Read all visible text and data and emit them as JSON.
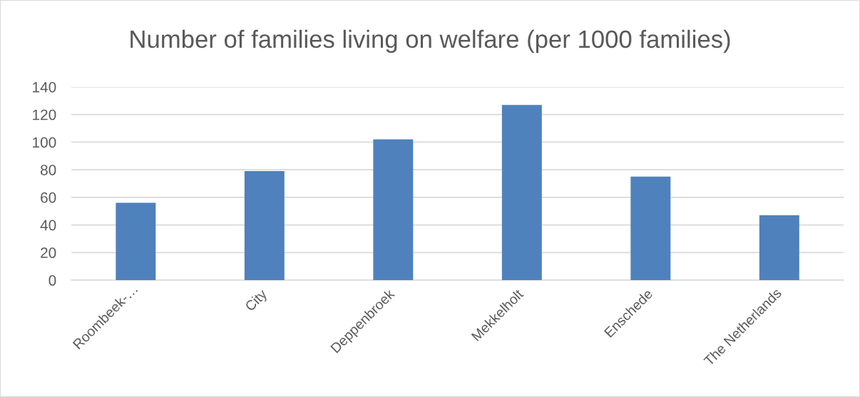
{
  "chart_data": {
    "type": "bar",
    "title": "Number of families living on welfare (per 1000 families)",
    "categories": [
      "Roombeek-…",
      "City",
      "Deppenbroek",
      "Mekkelholt",
      "Enschede",
      "The Netherlands"
    ],
    "values": [
      56,
      79,
      102,
      127,
      75,
      47
    ],
    "color": "#4f81bd",
    "ylim": [
      0,
      140
    ],
    "yticks": [
      0,
      20,
      40,
      60,
      80,
      100,
      120,
      140
    ],
    "grid": "y"
  }
}
